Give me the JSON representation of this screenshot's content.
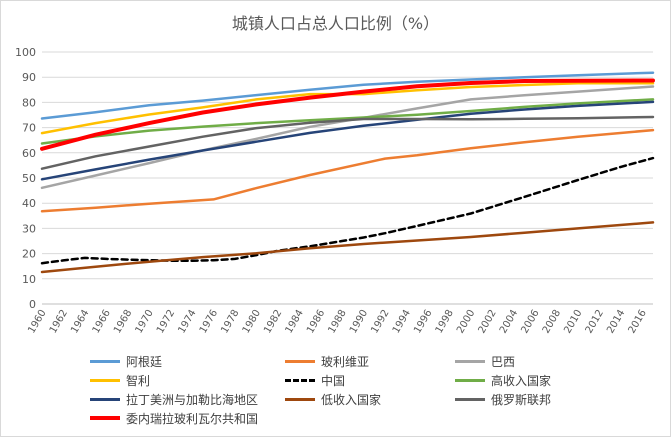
{
  "chart_data": {
    "type": "line",
    "title": "城镇人口占总人口比例（%）",
    "xlabel": "",
    "ylabel": "",
    "ylim": [
      0,
      100
    ],
    "yticks": [
      0,
      10,
      20,
      30,
      40,
      50,
      60,
      70,
      80,
      90,
      100
    ],
    "xlim": [
      1960,
      2017
    ],
    "xticks": [
      1960,
      1962,
      1964,
      1966,
      1968,
      1970,
      1972,
      1974,
      1976,
      1978,
      1980,
      1982,
      1984,
      1986,
      1988,
      1990,
      1992,
      1994,
      1996,
      1998,
      2000,
      2002,
      2004,
      2006,
      2008,
      2010,
      2012,
      2014,
      2016
    ],
    "grid": "horizontal",
    "legend_position": "bottom",
    "series": [
      {
        "name": "阿根廷",
        "color": "#5b9bd5",
        "dashed": false,
        "x": [
          1960,
          1965,
          1970,
          1975,
          1980,
          1985,
          1990,
          1995,
          2000,
          2005,
          2010,
          2017
        ],
        "y": [
          73.6,
          76.1,
          78.9,
          80.7,
          82.9,
          85.0,
          87.0,
          88.2,
          89.1,
          90.0,
          90.8,
          91.8
        ]
      },
      {
        "name": "玻利维亚",
        "color": "#ed7d31",
        "dashed": false,
        "x": [
          1960,
          1965,
          1970,
          1976,
          1980,
          1985,
          1992,
          1995,
          2000,
          2005,
          2010,
          2017
        ],
        "y": [
          36.8,
          38.2,
          39.8,
          41.5,
          46.0,
          51.2,
          57.7,
          59.0,
          61.8,
          64.2,
          66.4,
          69.0
        ]
      },
      {
        "name": "巴西",
        "color": "#a5a5a5",
        "dashed": false,
        "x": [
          1960,
          1965,
          1970,
          1975,
          1980,
          1985,
          1990,
          1995,
          2000,
          2005,
          2010,
          2017
        ],
        "y": [
          46.1,
          51.0,
          55.9,
          61.0,
          65.5,
          70.3,
          73.9,
          77.6,
          81.2,
          82.8,
          84.3,
          86.3
        ]
      },
      {
        "name": "智利",
        "color": "#ffc000",
        "dashed": false,
        "x": [
          1960,
          1965,
          1970,
          1975,
          1980,
          1985,
          1990,
          1995,
          2000,
          2005,
          2010,
          2017
        ],
        "y": [
          67.8,
          71.8,
          75.2,
          78.0,
          81.2,
          83.3,
          83.3,
          84.8,
          86.1,
          86.9,
          87.6,
          87.6
        ]
      },
      {
        "name": "中国",
        "color": "#000000",
        "dashed": true,
        "x": [
          1960,
          1962,
          1964,
          1966,
          1968,
          1970,
          1972,
          1974,
          1976,
          1978,
          1980,
          1982,
          1985,
          1988,
          1990,
          1992,
          1995,
          2000,
          2005,
          2010,
          2014,
          2017
        ],
        "y": [
          16.2,
          17.3,
          18.3,
          17.9,
          17.6,
          17.4,
          17.2,
          17.2,
          17.4,
          17.9,
          19.4,
          21.1,
          22.9,
          25.0,
          26.4,
          28.1,
          31.0,
          35.9,
          42.5,
          49.2,
          54.4,
          57.9
        ]
      },
      {
        "name": "高收入国家",
        "color": "#70ad47",
        "dashed": false,
        "x": [
          1960,
          1965,
          1970,
          1975,
          1980,
          1985,
          1990,
          1995,
          2000,
          2005,
          2010,
          2017
        ],
        "y": [
          63.7,
          66.5,
          68.8,
          70.4,
          71.8,
          72.9,
          74.0,
          75.1,
          76.6,
          78.2,
          79.6,
          81.2
        ]
      },
      {
        "name": "拉丁美洲与加勒比海地区",
        "color": "#264478",
        "dashed": false,
        "x": [
          1960,
          1965,
          1970,
          1975,
          1980,
          1985,
          1990,
          1995,
          2000,
          2005,
          2010,
          2017
        ],
        "y": [
          49.5,
          53.4,
          57.3,
          60.9,
          64.4,
          67.9,
          70.7,
          73.1,
          75.5,
          77.2,
          78.6,
          80.2
        ]
      },
      {
        "name": "低收入国家",
        "color": "#9e480e",
        "dashed": false,
        "x": [
          1960,
          1965,
          1970,
          1975,
          1980,
          1985,
          1990,
          1995,
          2000,
          2005,
          2010,
          2017
        ],
        "y": [
          12.7,
          14.8,
          16.8,
          18.6,
          20.1,
          22.1,
          23.8,
          25.2,
          26.6,
          28.3,
          30.0,
          32.4
        ]
      },
      {
        "name": "俄罗斯联邦",
        "color": "#636363",
        "dashed": false,
        "x": [
          1960,
          1965,
          1970,
          1975,
          1980,
          1985,
          1990,
          1995,
          2000,
          2005,
          2010,
          2017
        ],
        "y": [
          53.7,
          58.6,
          62.5,
          66.4,
          69.8,
          71.9,
          73.4,
          73.4,
          73.3,
          73.5,
          73.7,
          74.2
        ]
      },
      {
        "name": "委内瑞拉玻利瓦尔共和国",
        "color": "#ff0000",
        "dashed": false,
        "bold": true,
        "x": [
          1960,
          1965,
          1970,
          1975,
          1980,
          1985,
          1990,
          1995,
          2000,
          2005,
          2010,
          2017
        ],
        "y": [
          61.6,
          67.2,
          71.8,
          76.0,
          79.2,
          81.9,
          84.3,
          86.4,
          87.7,
          88.5,
          88.6,
          88.7
        ]
      }
    ]
  }
}
